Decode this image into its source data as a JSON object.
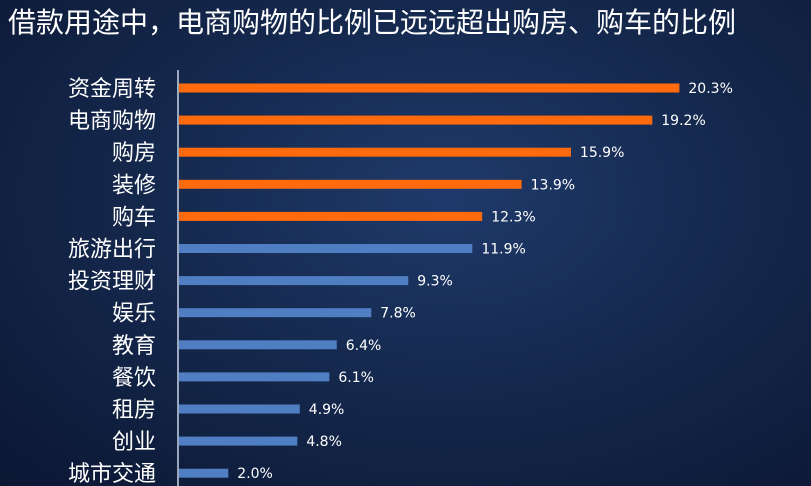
{
  "chart_data": {
    "type": "bar",
    "orientation": "horizontal",
    "title": "借款用途中，电商购物的比例已远远超出购房、购车的比例",
    "categories": [
      "资金周转",
      "电商购物",
      "购房",
      "装修",
      "购车",
      "旅游出行",
      "投资理财",
      "娱乐",
      "教育",
      "餐饮",
      "租房",
      "创业",
      "城市交通"
    ],
    "values": [
      20.3,
      19.2,
      15.9,
      13.9,
      12.3,
      11.9,
      9.3,
      7.8,
      6.4,
      6.1,
      4.9,
      4.8,
      2.0
    ],
    "value_labels": [
      "20.3%",
      "19.2%",
      "15.9%",
      "13.9%",
      "12.3%",
      "11.9%",
      "9.3%",
      "7.8%",
      "6.4%",
      "6.1%",
      "4.9%",
      "4.8%",
      "2.0%"
    ],
    "highlighted_count": 5,
    "unit": "%",
    "xlim": [
      0,
      25
    ],
    "xlabel": "",
    "ylabel": "",
    "grid": false,
    "legend": "none"
  },
  "colors": {
    "highlight": "#ff6a0d",
    "normal": "#4f7ec3",
    "axis": "#c9d4e6",
    "text": "#ffffff"
  }
}
